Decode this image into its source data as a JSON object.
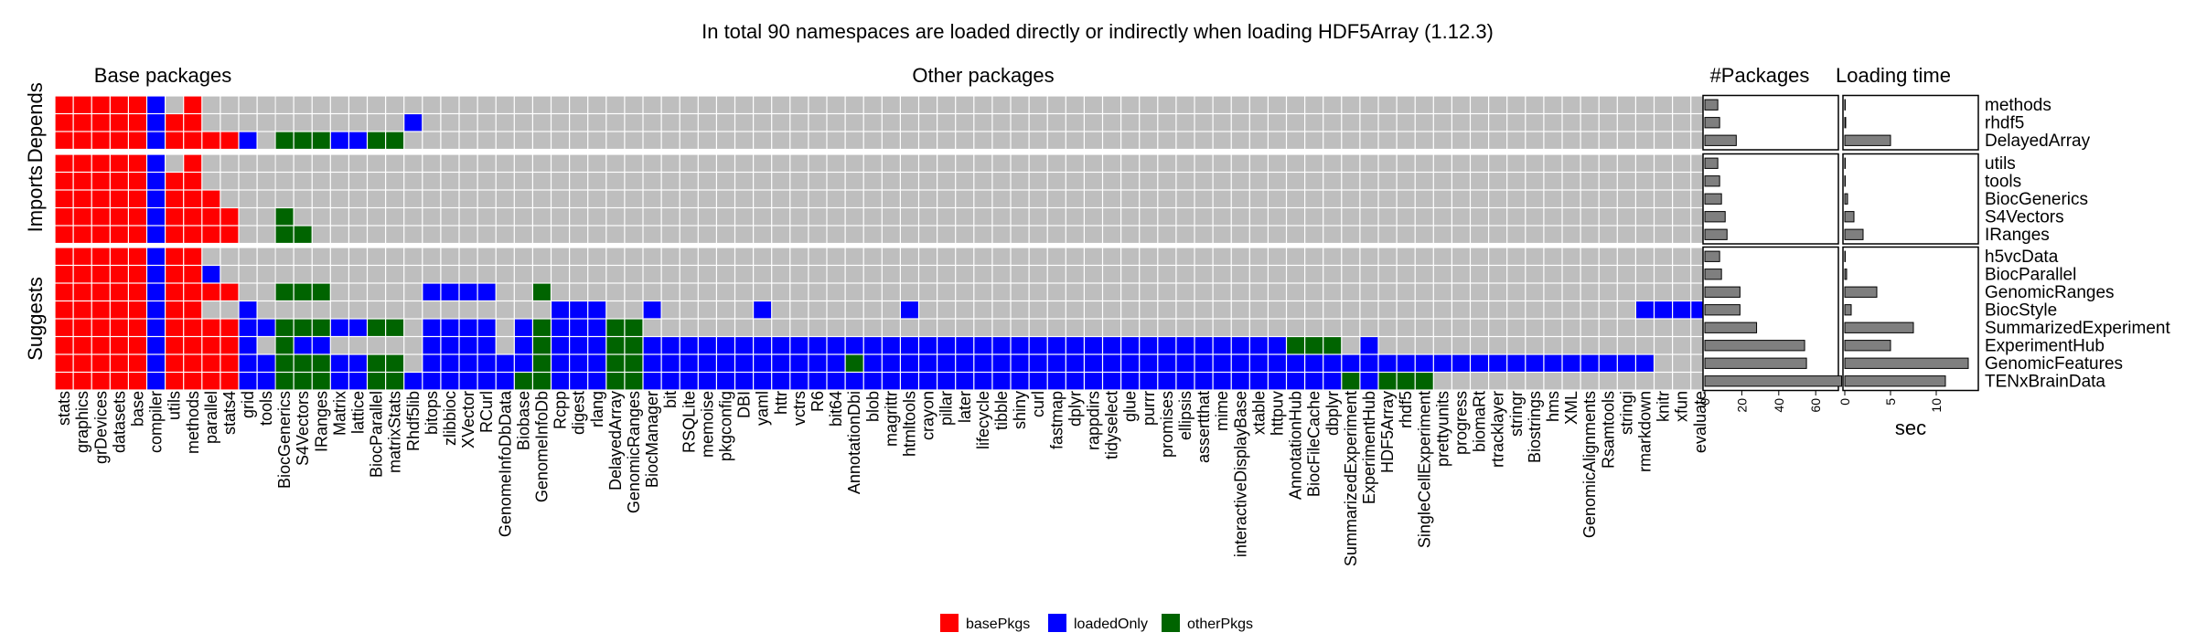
{
  "title": "In total 90 namespaces are loaded directly or indirectly when loading HDF5Array (1.12.3)",
  "colors": {
    "basePkgs": "#ff0000",
    "loadedOnly": "#0000ff",
    "otherPkgs": "#006400",
    "empty": "#bebebe",
    "bar": "#7f7f7f"
  },
  "chart_data": {
    "type": "heatmap",
    "panels": {
      "base_title": "Base packages",
      "other_title": "Other packages",
      "count_title": "#Packages",
      "time_title": "Loading time"
    },
    "base_packages": [
      "stats",
      "graphics",
      "grDevices",
      "datasets",
      "base",
      "compiler",
      "utils",
      "methods",
      "parallel",
      "stats4",
      "grid",
      "tools"
    ],
    "other_packages": [
      "BiocGenerics",
      "S4Vectors",
      "IRanges",
      "Matrix",
      "lattice",
      "BiocParallel",
      "matrixStats",
      "Rhdf5lib",
      "bitops",
      "zlibbioc",
      "XVector",
      "RCurl",
      "GenomeInfoDbData",
      "Biobase",
      "GenomeInfoDb",
      "Rcpp",
      "digest",
      "rlang",
      "DelayedArray",
      "GenomicRanges",
      "BiocManager",
      "bit",
      "RSQLite",
      "memoise",
      "pkgconfig",
      "DBI",
      "yaml",
      "httr",
      "vctrs",
      "R6",
      "bit64",
      "AnnotationDbi",
      "blob",
      "magrittr",
      "htmltools",
      "crayon",
      "pillar",
      "later",
      "lifecycle",
      "tibble",
      "shiny",
      "curl",
      "fastmap",
      "dplyr",
      "rappdirs",
      "tidyselect",
      "glue",
      "purrr",
      "promises",
      "ellipsis",
      "assertthat",
      "mime",
      "interactiveDisplayBase",
      "xtable",
      "httpuv",
      "AnnotationHub",
      "BiocFileCache",
      "dbplyr",
      "SummarizedExperiment",
      "ExperimentHub",
      "HDF5Array",
      "rhdf5",
      "SingleCellExperiment",
      "prettyunits",
      "progress",
      "biomaRt",
      "rtracklayer",
      "stringr",
      "Biostrings",
      "hms",
      "XML",
      "GenomicAlignments",
      "Rsamtools",
      "stringi",
      "rmarkdown",
      "knitr",
      "xfun",
      "evaluate"
    ],
    "groups": [
      {
        "label": "Depends",
        "rows": [
          "methods",
          "rhdf5",
          "DelayedArray"
        ]
      },
      {
        "label": "Imports",
        "rows": [
          "utils",
          "tools",
          "BiocGenerics",
          "S4Vectors",
          "IRanges"
        ]
      },
      {
        "label": "Suggests",
        "rows": [
          "h5vcData",
          "BiocParallel",
          "GenomicRanges",
          "BiocStyle",
          "SummarizedExperiment",
          "ExperimentHub",
          "GenomicFeatures",
          "TENxBrainData"
        ]
      }
    ],
    "legend": [
      {
        "key": "basePkgs",
        "label": "basePkgs"
      },
      {
        "key": "loadedOnly",
        "label": "loadedOnly"
      },
      {
        "key": "otherPkgs",
        "label": "otherPkgs"
      }
    ],
    "cells": {
      "methods": {
        "base": "BBBBBL.B",
        "other": ""
      },
      "rhdf5": {
        "base": "BBBBBLBB",
        "other": "7L"
      },
      "DelayedArray": {
        "base": "BBBBBLBBBBL",
        "other": "0O1O2O3L4L5O6O"
      },
      "utils": {
        "base": "BBBBBL.B",
        "other": ""
      },
      "tools": {
        "base": "BBBBBLBB",
        "other": ""
      },
      "BiocGenerics": {
        "base": "BBBBBLBBB",
        "other": ""
      },
      "S4Vectors": {
        "base": "BBBBBLBBBB",
        "other": "0O"
      },
      "IRanges": {
        "base": "BBBBBLBBBB",
        "other": "0O1O"
      },
      "h5vcData": {
        "base": "BBBBBLBB",
        "other": ""
      },
      "BiocParallel": {
        "base": "BBBBBLBBL",
        "other": ""
      },
      "GenomicRanges": {
        "base": "BBBBBLBBBB",
        "other": "0O1O2O8L9L10L11L14O"
      },
      "BiocStyle": {
        "base": "BBBBBLBB..L",
        "other": "15L16L17L20L26L34L74L75L76L77L"
      },
      "SummarizedExperiment": {
        "base": "BBBBBLBBBBLL",
        "other": "0O1O2O3L4L5O6O8L9L10L11L13L14O15L16L17L18O19O"
      },
      "ExperimentHub": {
        "base": "BBBBBLBBBBL",
        "other": "0O1L2L8L9L10L11L13L14O15L16L17L18O19O20L21L22L23L24L25L26L27L28L29L30L31L32L33L34L35L36L37L38L39L40L41L42L43L44L45L46L47L48L49L50L51L52L53L54L55O56O57O59L"
      },
      "GenomicFeatures": {
        "base": "BBBBBLBBBBLL",
        "other": "0O1O2O3L4L5O6O8L9L10L11L12L13L14O15L16L17L18O19O20L21L22L23L24L25L26L27L28L29L30L31O32L33L34L35L36L37L38L39L40L41L42L43L44L45L46L47L48L49L50L51L52L53L54L55L56L57L58L59L60L61L62L63L64L65L66L67L68L69L70L71L72L73L74L"
      },
      "TENxBrainData": {
        "base": "BBBBBLBBBBLL",
        "other": "0O1O2O3L4L5O6O7L8L9L10L11L12L13O14O15L16L17L18O19O20L21L22L23L24L25L26L27L28L29L30L31L32L33L34L35L36L37L38L39L40L41L42L43L44L45L46L47L48L49L50L51L52L53L54L55L56L57L58O59L60O61O62O"
      }
    },
    "package_counts": {
      "methods": 7,
      "rhdf5": 8,
      "DelayedArray": 17,
      "utils": 7,
      "tools": 8,
      "BiocGenerics": 9,
      "S4Vectors": 11,
      "IRanges": 12,
      "h5vcData": 8,
      "BiocParallel": 9,
      "GenomicRanges": 19,
      "BiocStyle": 19,
      "SummarizedExperiment": 28,
      "ExperimentHub": 54,
      "GenomicFeatures": 55,
      "TENxBrainData": 74
    },
    "loading_time_sec": {
      "methods": 0,
      "rhdf5": 0.1,
      "DelayedArray": 5,
      "utils": 0,
      "tools": 0,
      "BiocGenerics": 0.3,
      "S4Vectors": 1,
      "IRanges": 2,
      "h5vcData": 0,
      "BiocParallel": 0.2,
      "GenomicRanges": 3.5,
      "BiocStyle": 0.7,
      "SummarizedExperiment": 7.5,
      "ExperimentHub": 5,
      "GenomicFeatures": 13.5,
      "TENxBrainData": 11
    },
    "count_axis": {
      "ticks": [
        "0",
        "20",
        "40",
        "60"
      ],
      "values": [
        0,
        20,
        40,
        60
      ],
      "lim": [
        0,
        77
      ]
    },
    "time_axis": {
      "ticks": [
        "0",
        "5",
        "10"
      ],
      "values": [
        0,
        5,
        10
      ],
      "lim": [
        0,
        14.2
      ],
      "xlabel": "sec"
    }
  }
}
